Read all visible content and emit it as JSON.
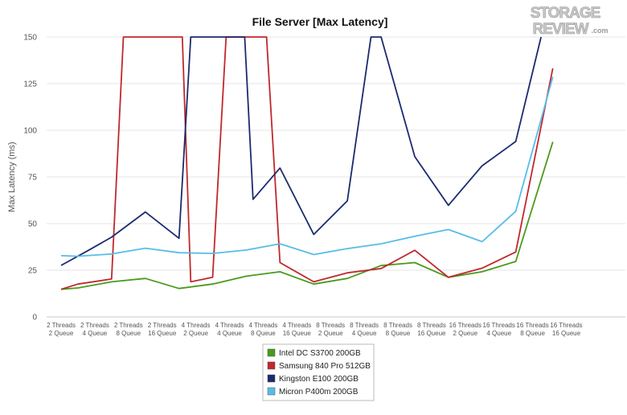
{
  "logo": {
    "line1": "STORAGE",
    "line2": "REVIEW",
    "suffix": ".com"
  },
  "chart_data": {
    "type": "line",
    "title": "File Server [Max Latency]",
    "xlabel": "",
    "ylabel": "Max Latency (ms)",
    "ylim": [
      0,
      150
    ],
    "yticks": [
      0,
      25,
      50,
      75,
      100,
      125,
      150
    ],
    "grid": true,
    "legend_position": "bottom-center",
    "categories": [
      [
        "2 Threads",
        "2 Queue"
      ],
      [
        "2 Threads",
        "4 Queue"
      ],
      [
        "2 Threads",
        "8 Queue"
      ],
      [
        "2 Threads",
        "16 Queue"
      ],
      [
        "4 Threads",
        "2 Queue"
      ],
      [
        "4 Threads",
        "4 Queue"
      ],
      [
        "4 Threads",
        "8 Queue"
      ],
      [
        "4 Threads",
        "16 Queue"
      ],
      [
        "8 Threads",
        "2 Queue"
      ],
      [
        "8 Threads",
        "4 Queue"
      ],
      [
        "8 Threads",
        "8 Queue"
      ],
      [
        "8 Threads",
        "16 Queue"
      ],
      [
        "16 Threads",
        "2 Queue"
      ],
      [
        "16 Threads",
        "4 Queue"
      ],
      [
        "16 Threads",
        "8 Queue"
      ],
      [
        "16 Threads",
        "16 Queue"
      ]
    ],
    "series": [
      {
        "name": "Intel DC S3700 200GB",
        "color": "#4a9a1c",
        "points": [
          [
            0.0,
            14.8
          ],
          [
            0.5,
            15.5
          ],
          [
            1.5,
            18.8
          ],
          [
            2.5,
            20.6
          ],
          [
            3.5,
            15.2
          ],
          [
            4.5,
            17.6
          ],
          [
            5.5,
            21.8
          ],
          [
            6.5,
            24.2
          ],
          [
            7.5,
            17.6
          ],
          [
            8.5,
            20.6
          ],
          [
            9.5,
            27.5
          ],
          [
            10.5,
            29.1
          ],
          [
            11.5,
            21.2
          ],
          [
            12.5,
            24.2
          ],
          [
            13.5,
            29.7
          ],
          [
            14.6,
            93.8
          ]
        ]
      },
      {
        "name": "Samsung 840 Pro 512GB",
        "color": "#c0282d",
        "points": [
          [
            0.0,
            14.8
          ],
          [
            0.5,
            17.6
          ],
          [
            1.5,
            20.3
          ],
          [
            1.85,
            150
          ],
          [
            3.6,
            150
          ],
          [
            3.85,
            18.8
          ],
          [
            4.5,
            21.2
          ],
          [
            4.9,
            150
          ],
          [
            6.1,
            150
          ],
          [
            6.5,
            29.1
          ],
          [
            7.5,
            18.8
          ],
          [
            8.5,
            23.6
          ],
          [
            9.5,
            25.9
          ],
          [
            10.5,
            35.7
          ],
          [
            11.5,
            21.2
          ],
          [
            12.5,
            26.1
          ],
          [
            13.5,
            34.8
          ],
          [
            14.6,
            133.2
          ]
        ]
      },
      {
        "name": "Kingston E100 200GB",
        "color": "#1c2a6e",
        "points": [
          [
            0.0,
            27.6
          ],
          [
            0.8,
            35.5
          ],
          [
            1.5,
            42.7
          ],
          [
            2.5,
            56.2
          ],
          [
            3.5,
            42.1
          ],
          [
            3.85,
            150
          ],
          [
            5.45,
            150
          ],
          [
            5.7,
            63.0
          ],
          [
            6.5,
            79.8
          ],
          [
            7.5,
            44.2
          ],
          [
            8.5,
            62.2
          ],
          [
            9.2,
            150
          ],
          [
            9.5,
            150
          ],
          [
            10.5,
            85.9
          ],
          [
            11.5,
            59.8
          ],
          [
            12.5,
            81.0
          ],
          [
            13.5,
            94.0
          ],
          [
            14.25,
            150
          ]
        ]
      },
      {
        "name": "Micron P400m 200GB",
        "color": "#56bde8",
        "points": [
          [
            0.0,
            32.8
          ],
          [
            0.5,
            32.5
          ],
          [
            1.5,
            33.7
          ],
          [
            2.5,
            36.8
          ],
          [
            3.5,
            34.4
          ],
          [
            4.5,
            34.0
          ],
          [
            5.5,
            35.8
          ],
          [
            6.5,
            39.2
          ],
          [
            7.5,
            33.4
          ],
          [
            8.5,
            36.6
          ],
          [
            9.5,
            39.2
          ],
          [
            10.5,
            43.2
          ],
          [
            11.5,
            46.8
          ],
          [
            12.5,
            40.3
          ],
          [
            13.5,
            56.6
          ],
          [
            14.6,
            128.6
          ]
        ]
      }
    ]
  }
}
